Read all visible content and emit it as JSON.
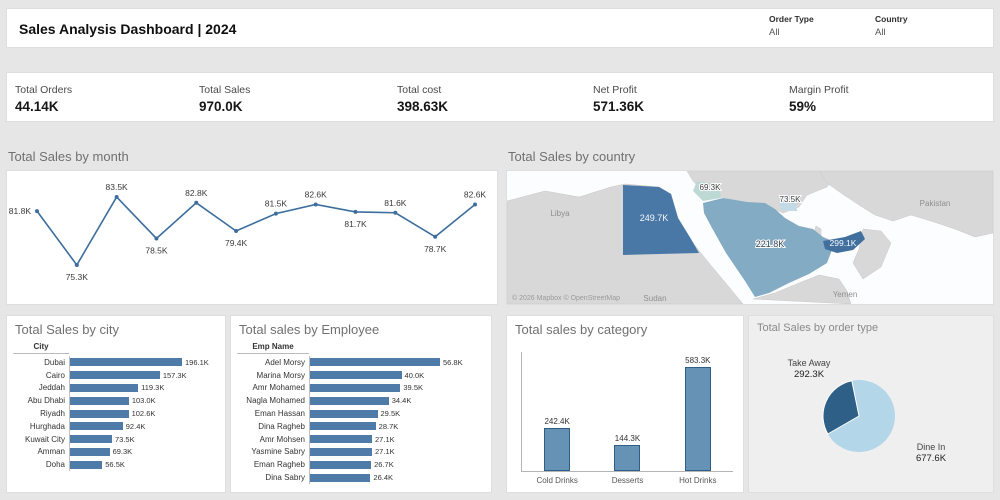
{
  "header": {
    "title": "Sales Analysis Dashboard | 2024",
    "filters": [
      {
        "label": "Order Type",
        "value": "All"
      },
      {
        "label": "Country",
        "value": "All"
      }
    ]
  },
  "kpis": [
    {
      "label": "Total Orders",
      "value": "44.14K"
    },
    {
      "label": "Total Sales",
      "value": "970.0K"
    },
    {
      "label": "Total cost",
      "value": "398.63K"
    },
    {
      "label": "Net Profit",
      "value": "571.36K"
    },
    {
      "label": "Margin Profit",
      "value": "59%"
    }
  ],
  "colors": {
    "accent_bar": "#4e7ba8",
    "line": "#3d6e9e",
    "pie_dark": "#2d5f87",
    "pie_light": "#b3d6e9",
    "map_country_dark": "#4a78a6",
    "map_country_mid": "#84abc4",
    "map_country_light": "#c3dae7",
    "map_country_teal": "#bdd9d3",
    "map_land": "#d8d8d8",
    "page_bg": "#e6e6e6"
  },
  "chart_data": [
    {
      "id": "sales_by_month",
      "type": "line",
      "title": "Total Sales by month",
      "x": [
        1,
        2,
        3,
        4,
        5,
        6,
        7,
        8,
        9,
        10,
        11,
        12
      ],
      "values": [
        81.8,
        75.3,
        83.5,
        78.5,
        82.8,
        79.4,
        81.5,
        82.6,
        81.7,
        81.6,
        78.7,
        82.6
      ],
      "labels": [
        "81.8K",
        "75.3K",
        "83.5K",
        "78.5K",
        "82.8K",
        "79.4K",
        "81.5K",
        "82.6K",
        "81.7K",
        "81.6K",
        "78.7K",
        "82.6K"
      ],
      "label_side": [
        "left",
        "below",
        "above",
        "below",
        "above",
        "below",
        "above",
        "above",
        "below",
        "above",
        "below",
        "above"
      ],
      "ylim": [
        75,
        84
      ],
      "grid": false
    },
    {
      "id": "sales_by_country",
      "type": "map",
      "title": "Total Sales by country",
      "countries": [
        {
          "name": "Egypt",
          "label": "249.7K"
        },
        {
          "name": "Saudi Arabia",
          "label": "221.8K"
        },
        {
          "name": "United Arab Emirates",
          "label": "299.1K"
        },
        {
          "name": "Jordan",
          "label": "69.3K"
        },
        {
          "name": "Kuwait",
          "label": "73.5K"
        }
      ],
      "context_labels": [
        "Libya",
        "Sudan",
        "Pakistan",
        "Yemen"
      ],
      "attribution": "© 2026 Mapbox © OpenStreetMap"
    },
    {
      "id": "sales_by_city",
      "type": "bar",
      "title": "Total Sales by city",
      "col_header": "City",
      "categories": [
        "Dubai",
        "Cairo",
        "Jeddah",
        "Abu Dhabi",
        "Riyadh",
        "Hurghada",
        "Kuwait City",
        "Amman",
        "Doha"
      ],
      "values": [
        196.1,
        157.3,
        119.3,
        103.0,
        102.6,
        92.4,
        73.5,
        69.3,
        56.5
      ],
      "labels": [
        "196.1K",
        "157.3K",
        "119.3K",
        "103.0K",
        "102.6K",
        "92.4K",
        "73.5K",
        "69.3K",
        "56.5K"
      ]
    },
    {
      "id": "sales_by_employee",
      "type": "bar",
      "title": "Total sales by Employee",
      "col_header": "Emp Name",
      "categories": [
        "Adel Morsy",
        "Marina Morsy",
        "Amr Mohamed",
        "Nagla Mohamed",
        "Eman Hassan",
        "Dina Ragheb",
        "Amr Mohsen",
        "Yasmine Sabry",
        "Eman Ragheb",
        "Dina Sabry"
      ],
      "values": [
        56.8,
        40.0,
        39.5,
        34.4,
        29.5,
        28.7,
        27.1,
        27.1,
        26.7,
        26.4
      ],
      "labels": [
        "56.8K",
        "40.0K",
        "39.5K",
        "34.4K",
        "29.5K",
        "28.7K",
        "27.1K",
        "27.1K",
        "26.7K",
        "26.4K"
      ]
    },
    {
      "id": "sales_by_category",
      "type": "bar",
      "title": "Total sales by category",
      "categories": [
        "Cold Drinks",
        "Desserts",
        "Hot Drinks"
      ],
      "values": [
        242.4,
        144.3,
        583.3
      ],
      "labels": [
        "242.4K",
        "144.3K",
        "583.3K"
      ]
    },
    {
      "id": "sales_by_order_type",
      "type": "pie",
      "title": "Total Sales by order type",
      "slices": [
        {
          "label": "Take Away",
          "value": 292.3,
          "text": "292.3K"
        },
        {
          "label": "Dine In",
          "value": 677.6,
          "text": "677.6K"
        }
      ]
    }
  ]
}
